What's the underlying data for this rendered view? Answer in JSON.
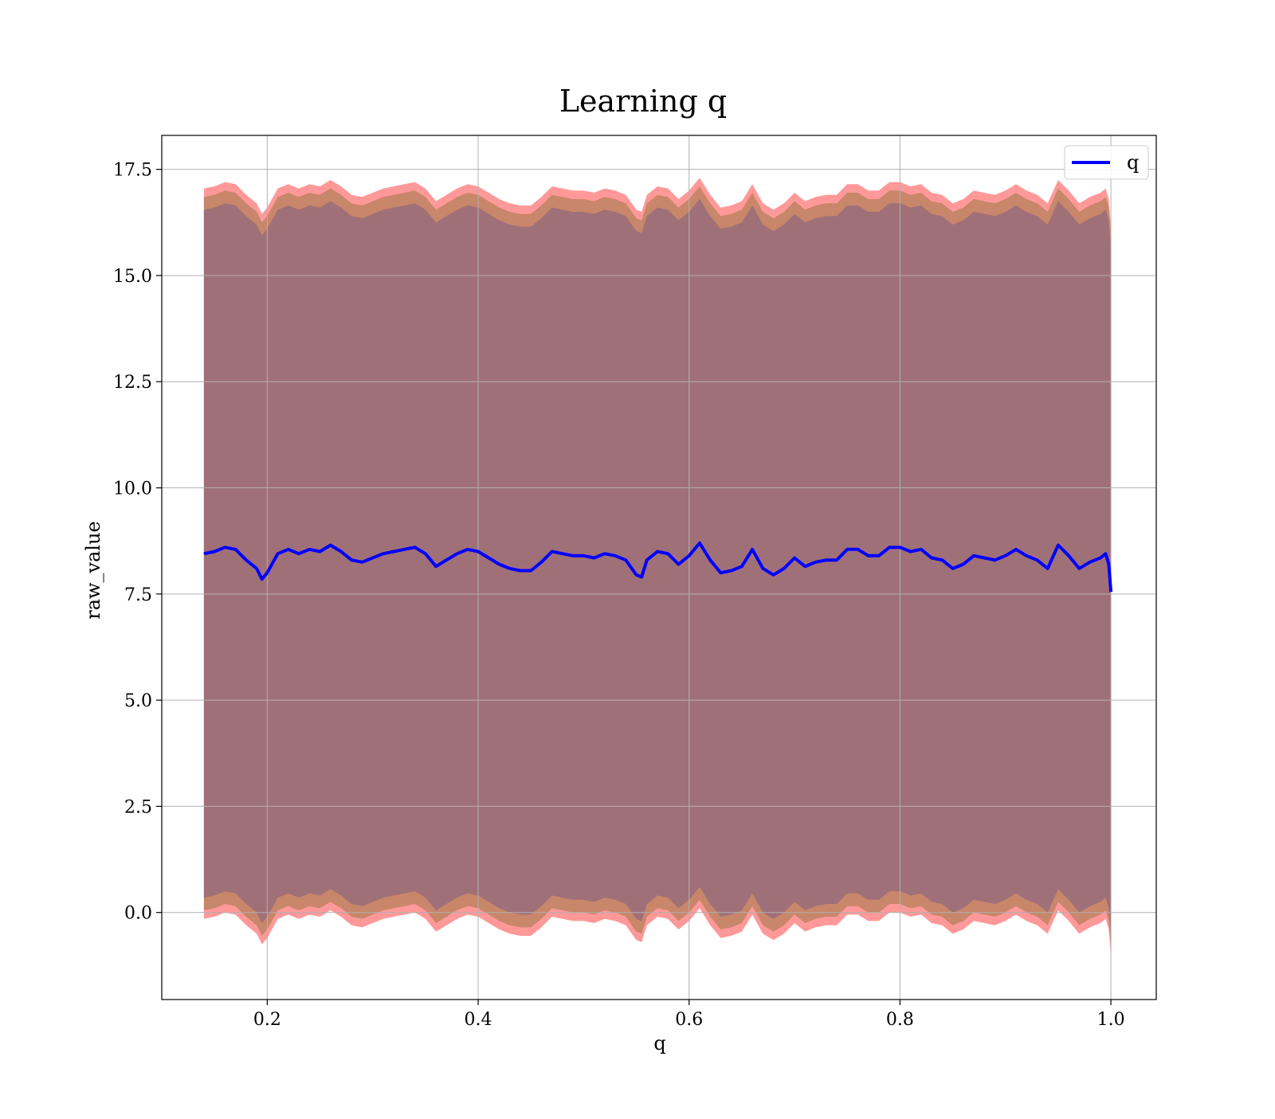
{
  "chart_data": {
    "type": "area",
    "title": "Learning q",
    "xlabel": "q",
    "ylabel": "raw_value",
    "xlim": [
      0.1,
      1.043
    ],
    "ylim": [
      -2.05,
      18.3
    ],
    "xticks": [
      "0.2",
      "0.4",
      "0.6",
      "0.8",
      "1.0"
    ],
    "xtick_values": [
      0.2,
      0.4,
      0.6,
      0.8,
      1.0
    ],
    "yticks": [
      "0.0",
      "2.5",
      "5.0",
      "7.5",
      "10.0",
      "12.5",
      "15.0",
      "17.5"
    ],
    "ytick_values": [
      0.0,
      2.5,
      5.0,
      7.5,
      10.0,
      12.5,
      15.0,
      17.5
    ],
    "grid": true,
    "legend": {
      "position": "top-right",
      "entries": [
        {
          "label": "q",
          "color": "#0000ff"
        }
      ]
    },
    "colors": {
      "line": "#0000ff",
      "outer_band": "#ff9999",
      "middle_band": "#c8866a",
      "inner_band": "#a07078",
      "grid": "#b0b0b0"
    },
    "band_offsets": {
      "inner": 8.1,
      "middle": 8.4,
      "outer": 8.6
    },
    "series": [
      {
        "name": "q",
        "x": [
          0.14,
          0.15,
          0.16,
          0.17,
          0.18,
          0.19,
          0.195,
          0.2,
          0.21,
          0.22,
          0.23,
          0.24,
          0.25,
          0.26,
          0.27,
          0.28,
          0.29,
          0.3,
          0.31,
          0.32,
          0.33,
          0.34,
          0.35,
          0.36,
          0.37,
          0.38,
          0.39,
          0.4,
          0.41,
          0.42,
          0.43,
          0.44,
          0.45,
          0.46,
          0.47,
          0.48,
          0.49,
          0.5,
          0.51,
          0.52,
          0.53,
          0.54,
          0.55,
          0.555,
          0.56,
          0.57,
          0.58,
          0.59,
          0.6,
          0.61,
          0.62,
          0.63,
          0.64,
          0.65,
          0.66,
          0.67,
          0.68,
          0.69,
          0.7,
          0.71,
          0.72,
          0.73,
          0.74,
          0.75,
          0.76,
          0.77,
          0.78,
          0.79,
          0.8,
          0.81,
          0.82,
          0.83,
          0.84,
          0.85,
          0.86,
          0.87,
          0.88,
          0.89,
          0.9,
          0.91,
          0.92,
          0.93,
          0.94,
          0.95,
          0.96,
          0.97,
          0.98,
          0.99,
          0.995,
          0.998,
          1.0
        ],
        "y": [
          8.45,
          8.5,
          8.6,
          8.55,
          8.3,
          8.1,
          7.85,
          8.0,
          8.45,
          8.55,
          8.45,
          8.55,
          8.5,
          8.65,
          8.5,
          8.3,
          8.25,
          8.35,
          8.45,
          8.5,
          8.55,
          8.6,
          8.45,
          8.15,
          8.3,
          8.45,
          8.55,
          8.5,
          8.35,
          8.2,
          8.1,
          8.05,
          8.05,
          8.25,
          8.5,
          8.45,
          8.4,
          8.4,
          8.35,
          8.45,
          8.4,
          8.3,
          7.95,
          7.9,
          8.3,
          8.5,
          8.45,
          8.2,
          8.4,
          8.7,
          8.3,
          8.0,
          8.05,
          8.15,
          8.55,
          8.1,
          7.95,
          8.1,
          8.35,
          8.15,
          8.25,
          8.3,
          8.3,
          8.55,
          8.55,
          8.4,
          8.4,
          8.6,
          8.6,
          8.5,
          8.55,
          8.35,
          8.3,
          8.1,
          8.2,
          8.4,
          8.35,
          8.3,
          8.4,
          8.55,
          8.4,
          8.3,
          8.1,
          8.65,
          8.4,
          8.1,
          8.25,
          8.35,
          8.45,
          8.2,
          7.55
        ]
      }
    ]
  }
}
